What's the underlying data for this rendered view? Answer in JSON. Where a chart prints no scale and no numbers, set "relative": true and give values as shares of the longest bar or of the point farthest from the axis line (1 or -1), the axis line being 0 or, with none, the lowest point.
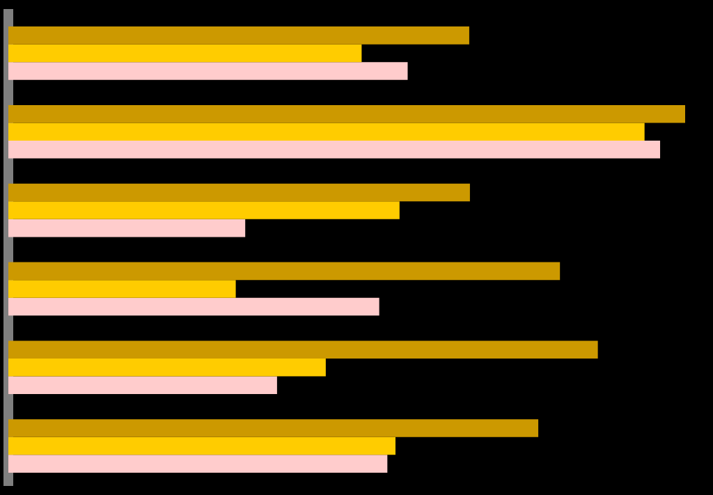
{
  "chart_data": {
    "type": "bar",
    "orientation": "horizontal",
    "relative": true,
    "categories": [
      null,
      null,
      null,
      null,
      null,
      null
    ],
    "series": [
      {
        "color": "#cc9900",
        "values": [
          0.681,
          1,
          0.682,
          0.815,
          0.871,
          0.783
        ]
      },
      {
        "color": "#ffcc00",
        "values": [
          0.522,
          0.94,
          0.578,
          0.336,
          0.469,
          0.572
        ]
      },
      {
        "color": "#ffcccc",
        "values": [
          0.59,
          0.963,
          0.35,
          0.548,
          0.397,
          0.56
        ]
      }
    ]
  }
}
